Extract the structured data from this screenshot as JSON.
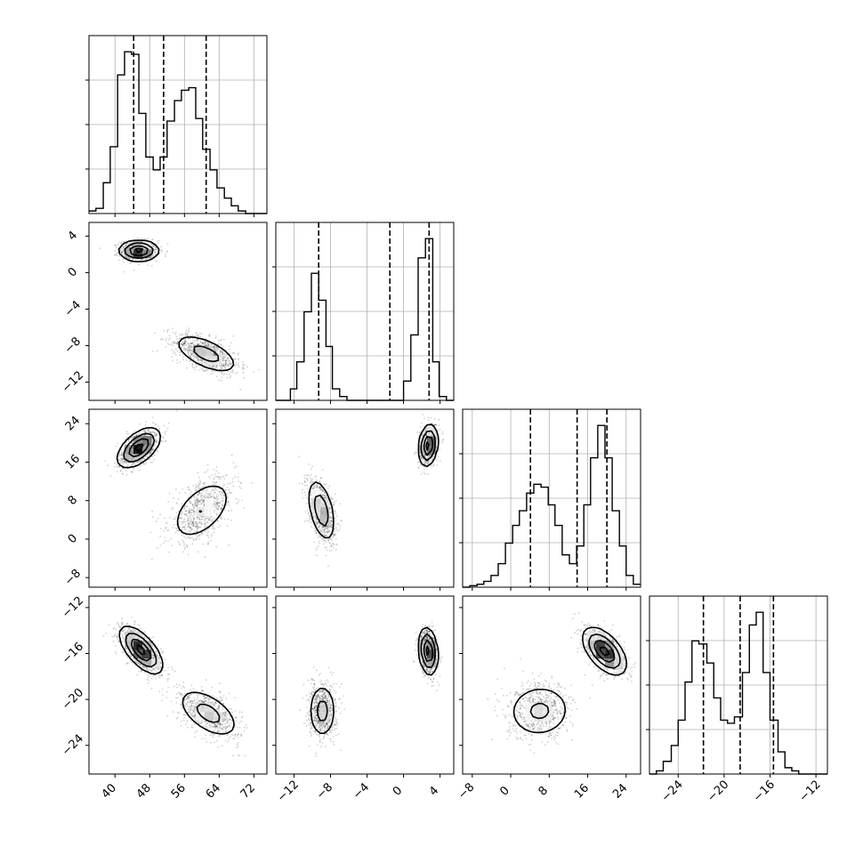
{
  "chart_data": {
    "type": "corner",
    "grid": true,
    "quantile_lines": "dashed",
    "parameters": [
      {
        "range": [
          34,
          75
        ],
        "ticks": [
          40,
          48,
          56,
          64,
          72
        ],
        "quantiles": [
          44.3,
          51.2,
          61.0
        ]
      },
      {
        "range": [
          -14,
          5.5
        ],
        "ticks": [
          -12,
          -8,
          -4,
          0,
          4
        ],
        "quantiles": [
          -9.3,
          -1.5,
          2.8
        ]
      },
      {
        "range": [
          -10,
          27
        ],
        "ticks": [
          -8,
          0,
          8,
          16,
          24
        ],
        "quantiles": [
          4.1,
          13.8,
          20.0
        ]
      },
      {
        "range": [
          -26.5,
          -11
        ],
        "ticks": [
          -24,
          -20,
          -16,
          -12
        ],
        "quantiles": [
          -21.8,
          -18.6,
          -15.7
        ]
      }
    ],
    "histograms": [
      {
        "param": 0,
        "edges": [
          34,
          35.6,
          37.3,
          38.9,
          40.6,
          42.2,
          43.8,
          45.5,
          47.1,
          48.8,
          50.4,
          52,
          53.7,
          55.3,
          57,
          58.6,
          60.2,
          61.9,
          63.5,
          65.2,
          66.8,
          68.4,
          70.1,
          71.7,
          73.4,
          75
        ],
        "counts": [
          1,
          2,
          12,
          26,
          54,
          63,
          62,
          39,
          22,
          17,
          22,
          36,
          44,
          48,
          49,
          37,
          25,
          17,
          10,
          6,
          3,
          1,
          0,
          0,
          0
        ]
      },
      {
        "param": 1,
        "edges": [
          -14,
          -13.2,
          -12.4,
          -11.7,
          -10.9,
          -10.1,
          -9.3,
          -8.5,
          -7.8,
          -7,
          -6.2,
          -5.4,
          -4.6,
          -3.9,
          -3.1,
          -2.3,
          -1.5,
          -0.7,
          0,
          0.8,
          1.6,
          2.4,
          3.2,
          3.9,
          4.7,
          5.5
        ],
        "counts": [
          0,
          0,
          3,
          10,
          23,
          33,
          26,
          14,
          3,
          1,
          0,
          0,
          0,
          0,
          0,
          0,
          0,
          0,
          5,
          17,
          37,
          42,
          10,
          1,
          0
        ]
      },
      {
        "param": 2,
        "edges": [
          -10,
          -8.5,
          -7,
          -5.6,
          -4.1,
          -2.6,
          -1.1,
          0.4,
          1.8,
          3.3,
          4.8,
          6.3,
          7.8,
          9.2,
          10.7,
          12.2,
          13.7,
          15.2,
          16.6,
          18.1,
          19.6,
          21.1,
          22.6,
          24,
          25.5,
          27
        ],
        "counts": [
          0,
          0.5,
          1,
          2,
          4,
          8,
          15,
          21,
          26,
          32,
          35,
          34,
          28,
          21,
          11,
          8,
          14,
          28,
          44,
          55,
          44,
          26,
          14,
          4,
          1
        ]
      },
      {
        "param": 3,
        "edges": [
          -26.5,
          -25.9,
          -25.3,
          -24.6,
          -24,
          -23.4,
          -22.8,
          -22.2,
          -21.5,
          -20.9,
          -20.3,
          -19.7,
          -19.1,
          -18.4,
          -17.8,
          -17.2,
          -16.6,
          -16,
          -15.3,
          -14.7,
          -14.1,
          -13.5,
          -12.9,
          -12.2,
          -11.6,
          -11
        ],
        "counts": [
          0,
          1,
          4,
          9,
          17,
          29,
          42,
          41,
          35,
          24,
          17,
          16,
          18,
          32,
          47,
          51,
          32,
          17,
          7,
          2,
          1,
          0,
          0,
          0,
          0
        ]
      }
    ],
    "pairs": [
      {
        "x": 0,
        "y": 1,
        "clusters": [
          {
            "center": [
              45.5,
              2.4
            ],
            "sigma": [
              2.2,
              0.55
            ],
            "rho": 0.0,
            "weight": 1.0
          },
          {
            "center": [
              61.0,
              -8.9
            ],
            "sigma": [
              3.8,
              1.1
            ],
            "rho": -0.6,
            "weight": 0.45
          }
        ]
      },
      {
        "x": 0,
        "y": 2,
        "clusters": [
          {
            "center": [
              45.5,
              19.0
            ],
            "sigma": [
              2.4,
              2.0
            ],
            "rho": 0.55,
            "weight": 1.0
          },
          {
            "center": [
              60.0,
              6.0
            ],
            "sigma": [
              3.8,
              3.4
            ],
            "rho": 0.5,
            "weight": 0.35
          }
        ]
      },
      {
        "x": 0,
        "y": 3,
        "clusters": [
          {
            "center": [
              46.0,
              -15.7
            ],
            "sigma": [
              2.4,
              1.0
            ],
            "rho": -0.65,
            "weight": 1.0
          },
          {
            "center": [
              61.5,
              -21.2
            ],
            "sigma": [
              3.6,
              1.1
            ],
            "rho": -0.55,
            "weight": 0.45
          }
        ]
      },
      {
        "x": 1,
        "y": 2,
        "clusters": [
          {
            "center": [
              -9.0,
              6.0
            ],
            "sigma": [
              0.75,
              3.3
            ],
            "rho": -0.45,
            "weight": 0.55
          },
          {
            "center": [
              2.7,
              19.5
            ],
            "sigma": [
              0.5,
              2.1
            ],
            "rho": 0.2,
            "weight": 1.0
          }
        ]
      },
      {
        "x": 1,
        "y": 3,
        "clusters": [
          {
            "center": [
              -8.9,
              -21.0
            ],
            "sigma": [
              0.75,
              1.2
            ],
            "rho": 0.0,
            "weight": 0.45
          },
          {
            "center": [
              2.7,
              -15.8
            ],
            "sigma": [
              0.5,
              1.0
            ],
            "rho": -0.2,
            "weight": 1.0
          }
        ]
      },
      {
        "x": 2,
        "y": 3,
        "clusters": [
          {
            "center": [
              6.0,
              -21.0
            ],
            "sigma": [
              3.4,
              1.2
            ],
            "rho": 0.05,
            "weight": 0.4
          },
          {
            "center": [
              19.5,
              -15.8
            ],
            "sigma": [
              2.2,
              1.0
            ],
            "rho": -0.55,
            "weight": 1.0
          }
        ]
      }
    ]
  }
}
